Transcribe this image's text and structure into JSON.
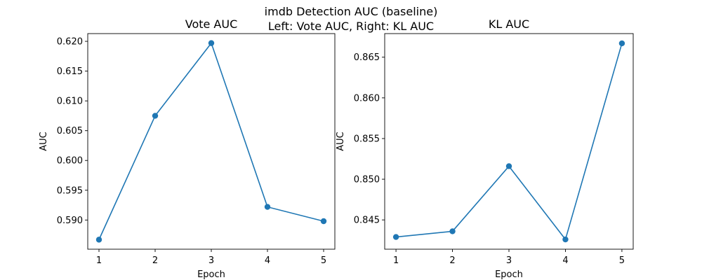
{
  "figure": {
    "suptitle_line1": "imdb Detection AUC (baseline)",
    "suptitle_line2": "Left: Vote AUC, Right: KL AUC"
  },
  "chart_data": [
    {
      "type": "line",
      "title": "Vote AUC",
      "xlabel": "Epoch",
      "ylabel": "AUC",
      "x": [
        1,
        2,
        3,
        4,
        5
      ],
      "series": [
        {
          "values": [
            0.5867,
            0.6075,
            0.6197,
            0.5922,
            0.5898
          ],
          "color": "#1f77b4",
          "marker": "circle"
        }
      ],
      "xlim": [
        0.8,
        5.2
      ],
      "ylim": [
        0.5851,
        0.6213
      ],
      "xticks": [
        "1",
        "2",
        "3",
        "4",
        "5"
      ],
      "yticks": [
        "0.590",
        "0.595",
        "0.600",
        "0.605",
        "0.610",
        "0.615",
        "0.620"
      ],
      "grid": false
    },
    {
      "type": "line",
      "title": "KL AUC",
      "xlabel": "Epoch",
      "ylabel": "AUC",
      "x": [
        1,
        2,
        3,
        4,
        5
      ],
      "series": [
        {
          "values": [
            0.8429,
            0.8436,
            0.8516,
            0.8426,
            0.8667
          ],
          "color": "#1f77b4",
          "marker": "circle"
        }
      ],
      "xlim": [
        0.8,
        5.2
      ],
      "ylim": [
        0.8414,
        0.8679
      ],
      "xticks": [
        "1",
        "2",
        "3",
        "4",
        "5"
      ],
      "yticks": [
        "0.845",
        "0.850",
        "0.855",
        "0.860",
        "0.865"
      ],
      "grid": false
    }
  ]
}
